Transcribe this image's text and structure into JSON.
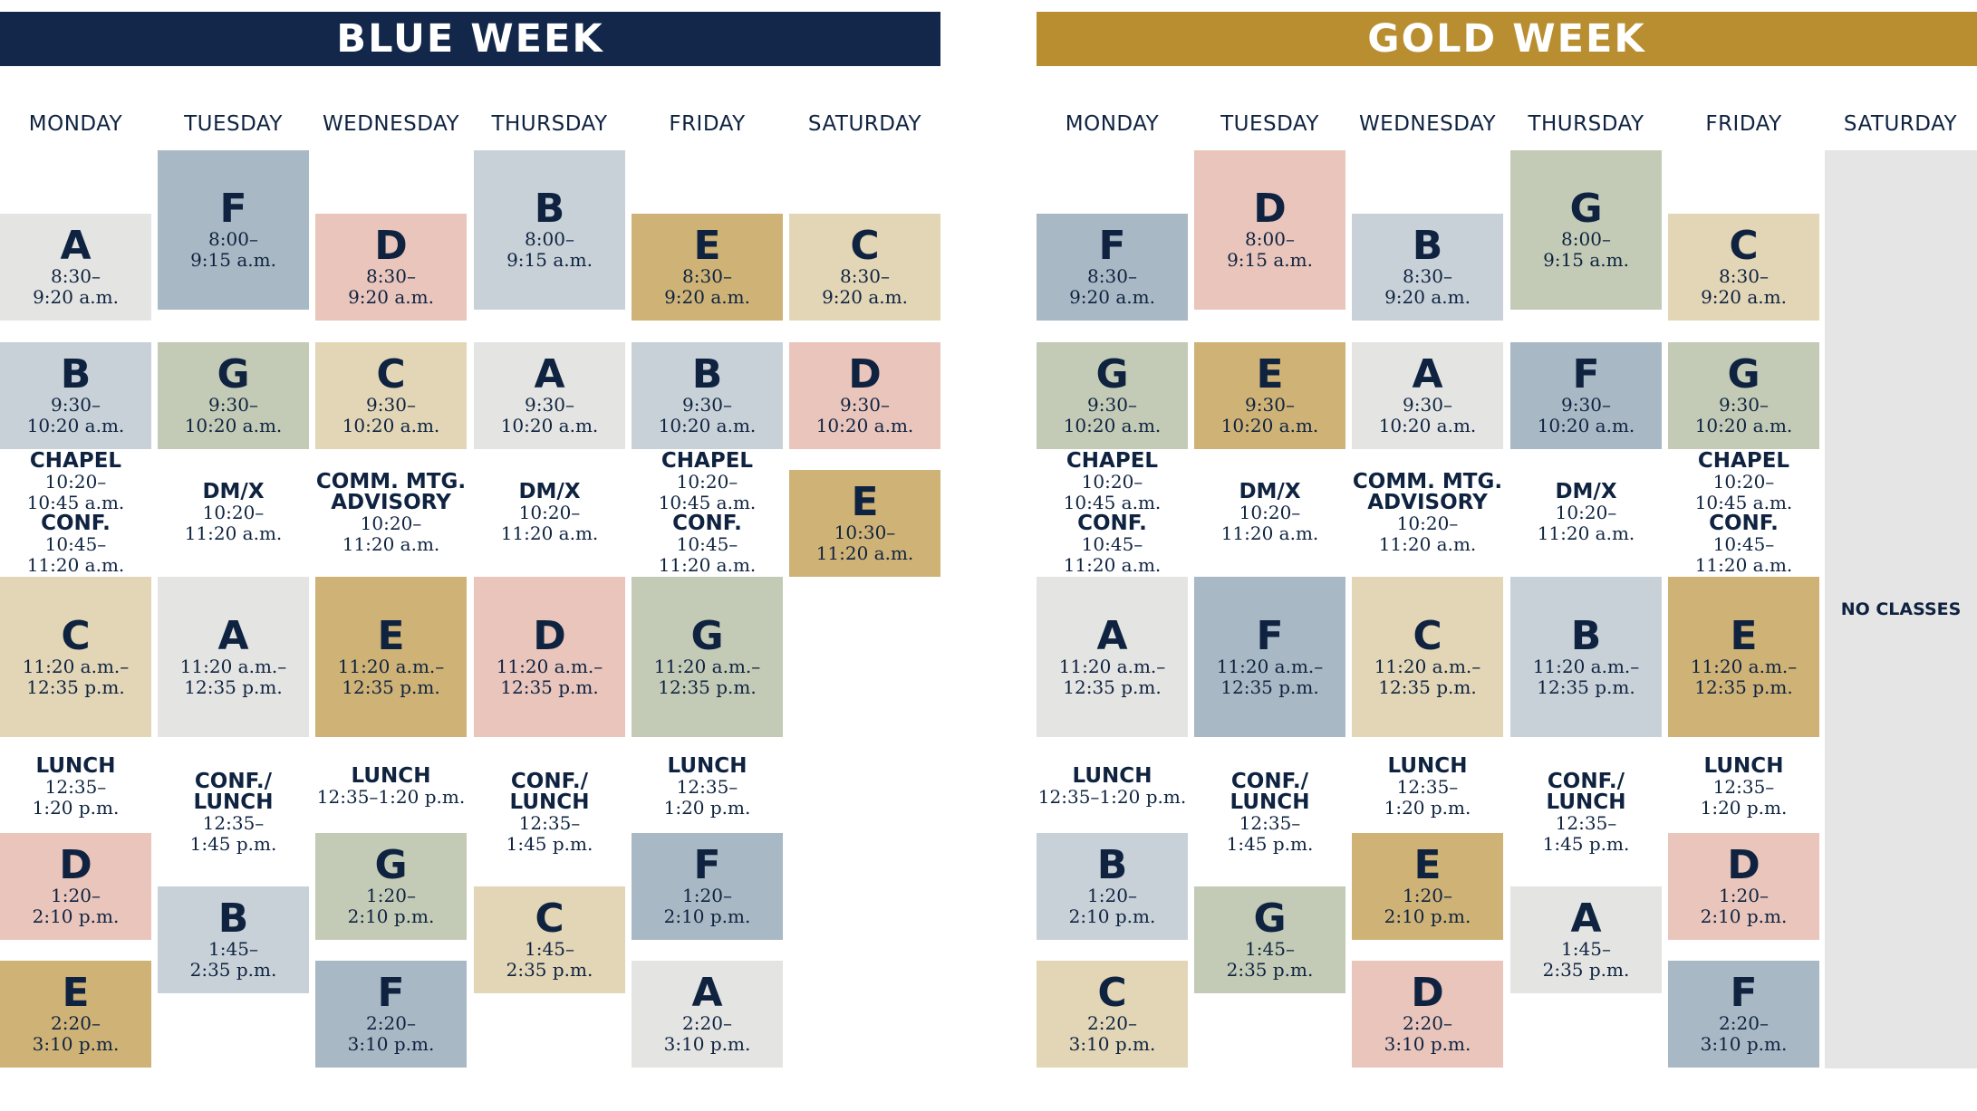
{
  "colors": {
    "blue_banner": "#13274a",
    "gold_banner": "#b88e30",
    "A": "#e4e4e2",
    "B": "#c8d1d8",
    "C": "#e2d6b6",
    "D": "#e9c5bc",
    "E": "#cfb276",
    "F": "#a8b8c4",
    "G": "#c3cbb6",
    "no_classes": "#e5e5e5"
  },
  "blue_week": {
    "title": "BLUE WEEK",
    "days": [
      "MONDAY",
      "TUESDAY",
      "WEDNESDAY",
      "THURSDAY",
      "FRIDAY",
      "SATURDAY"
    ],
    "blocks": [
      {
        "letter": "A",
        "time1": "8:30–",
        "time2": "9:20 a.m."
      },
      {
        "letter": "B",
        "time1": "9:30–",
        "time2": "10:20 a.m."
      },
      {
        "letter": "C",
        "time1": "11:20 a.m.–",
        "time2": "12:35 p.m."
      },
      {
        "letter": "D",
        "time1": "1:20–",
        "time2": "2:10 p.m."
      },
      {
        "letter": "E",
        "time1": "2:20–",
        "time2": "3:10 p.m."
      },
      {
        "letter": "F",
        "time1": "8:00–",
        "time2": "9:15 a.m."
      },
      {
        "letter": "G",
        "time1": "9:30–",
        "time2": "10:20 a.m."
      },
      {
        "letter": "A",
        "time1": "11:20 a.m.–",
        "time2": "12:35 p.m."
      },
      {
        "letter": "B",
        "time1": "1:45–",
        "time2": "2:35 p.m."
      },
      {
        "letter": "D",
        "time1": "8:30–",
        "time2": "9:20 a.m."
      },
      {
        "letter": "C",
        "time1": "9:30–",
        "time2": "10:20 a.m."
      },
      {
        "letter": "E",
        "time1": "11:20 a.m.–",
        "time2": "12:35 p.m."
      },
      {
        "letter": "G",
        "time1": "1:20–",
        "time2": "2:10 p.m."
      },
      {
        "letter": "F",
        "time1": "2:20–",
        "time2": "3:10 p.m."
      },
      {
        "letter": "B",
        "time1": "8:00–",
        "time2": "9:15 a.m."
      },
      {
        "letter": "A",
        "time1": "9:30–",
        "time2": "10:20 a.m."
      },
      {
        "letter": "D",
        "time1": "11:20 a.m.–",
        "time2": "12:35 p.m."
      },
      {
        "letter": "C",
        "time1": "1:45–",
        "time2": "2:35 p.m."
      },
      {
        "letter": "E",
        "time1": "8:30–",
        "time2": "9:20 a.m."
      },
      {
        "letter": "B",
        "time1": "9:30–",
        "time2": "10:20 a.m."
      },
      {
        "letter": "G",
        "time1": "11:20 a.m.–",
        "time2": "12:35 p.m."
      },
      {
        "letter": "F",
        "time1": "1:20–",
        "time2": "2:10 p.m."
      },
      {
        "letter": "A",
        "time1": "2:20–",
        "time2": "3:10 p.m."
      },
      {
        "letter": "C",
        "time1": "8:30–",
        "time2": "9:20 a.m."
      },
      {
        "letter": "D",
        "time1": "9:30–",
        "time2": "10:20 a.m."
      },
      {
        "letter": "E",
        "time1": "10:30–",
        "time2": "11:20 a.m."
      }
    ],
    "info": [
      {
        "lines": [
          {
            "k": "head",
            "t": "CHAPEL"
          },
          {
            "k": "time",
            "t": "10:20–"
          },
          {
            "k": "time",
            "t": "10:45 a.m."
          },
          {
            "k": "head",
            "t": "CONF."
          },
          {
            "k": "time",
            "t": "10:45–"
          },
          {
            "k": "time",
            "t": "11:20 a.m."
          }
        ]
      },
      {
        "lines": [
          {
            "k": "head",
            "t": "LUNCH"
          },
          {
            "k": "time",
            "t": "12:35–"
          },
          {
            "k": "time",
            "t": "1:20 p.m."
          }
        ]
      },
      {
        "lines": [
          {
            "k": "head",
            "t": "DM/X"
          },
          {
            "k": "time",
            "t": "10:20–"
          },
          {
            "k": "time",
            "t": "11:20 a.m."
          }
        ]
      },
      {
        "lines": [
          {
            "k": "head",
            "t": "CONF./"
          },
          {
            "k": "head",
            "t": "LUNCH"
          },
          {
            "k": "time",
            "t": "12:35–"
          },
          {
            "k": "time",
            "t": "1:45 p.m."
          }
        ]
      },
      {
        "lines": [
          {
            "k": "head",
            "t": "COMM. MTG."
          },
          {
            "k": "head",
            "t": "ADVISORY"
          },
          {
            "k": "time",
            "t": "10:20–"
          },
          {
            "k": "time",
            "t": "11:20 a.m."
          }
        ]
      },
      {
        "lines": [
          {
            "k": "head",
            "t": "LUNCH"
          },
          {
            "k": "time",
            "t": "12:35–1:20 p.m."
          }
        ]
      },
      {
        "lines": [
          {
            "k": "head",
            "t": "DM/X"
          },
          {
            "k": "time",
            "t": "10:20–"
          },
          {
            "k": "time",
            "t": "11:20 a.m."
          }
        ]
      },
      {
        "lines": [
          {
            "k": "head",
            "t": "CONF./"
          },
          {
            "k": "head",
            "t": "LUNCH"
          },
          {
            "k": "time",
            "t": "12:35–"
          },
          {
            "k": "time",
            "t": "1:45 p.m."
          }
        ]
      },
      {
        "lines": [
          {
            "k": "head",
            "t": "CHAPEL"
          },
          {
            "k": "time",
            "t": "10:20–"
          },
          {
            "k": "time",
            "t": "10:45 a.m."
          },
          {
            "k": "head",
            "t": "CONF."
          },
          {
            "k": "time",
            "t": "10:45–"
          },
          {
            "k": "time",
            "t": "11:20 a.m."
          }
        ]
      },
      {
        "lines": [
          {
            "k": "head",
            "t": "LUNCH"
          },
          {
            "k": "time",
            "t": "12:35–"
          },
          {
            "k": "time",
            "t": "1:20 p.m."
          }
        ]
      }
    ]
  },
  "gold_week": {
    "title": "GOLD WEEK",
    "days": [
      "MONDAY",
      "TUESDAY",
      "WEDNESDAY",
      "THURSDAY",
      "FRIDAY",
      "SATURDAY"
    ],
    "no_classes": "NO CLASSES",
    "blocks": [
      {
        "letter": "F",
        "time1": "8:30–",
        "time2": "9:20 a.m."
      },
      {
        "letter": "G",
        "time1": "9:30–",
        "time2": "10:20 a.m."
      },
      {
        "letter": "A",
        "time1": "11:20 a.m.–",
        "time2": "12:35 p.m."
      },
      {
        "letter": "B",
        "time1": "1:20–",
        "time2": "2:10 p.m."
      },
      {
        "letter": "C",
        "time1": "2:20–",
        "time2": "3:10 p.m."
      },
      {
        "letter": "D",
        "time1": "8:00–",
        "time2": "9:15 a.m."
      },
      {
        "letter": "E",
        "time1": "9:30–",
        "time2": "10:20 a.m."
      },
      {
        "letter": "F",
        "time1": "11:20 a.m.–",
        "time2": "12:35 p.m."
      },
      {
        "letter": "G",
        "time1": "1:45–",
        "time2": "2:35 p.m."
      },
      {
        "letter": "B",
        "time1": "8:30–",
        "time2": "9:20 a.m."
      },
      {
        "letter": "A",
        "time1": "9:30–",
        "time2": "10:20 a.m."
      },
      {
        "letter": "C",
        "time1": "11:20 a.m.–",
        "time2": "12:35 p.m."
      },
      {
        "letter": "E",
        "time1": "1:20–",
        "time2": "2:10 p.m."
      },
      {
        "letter": "D",
        "time1": "2:20–",
        "time2": "3:10 p.m."
      },
      {
        "letter": "G",
        "time1": "8:00–",
        "time2": "9:15 a.m."
      },
      {
        "letter": "F",
        "time1": "9:30–",
        "time2": "10:20 a.m."
      },
      {
        "letter": "B",
        "time1": "11:20 a.m.–",
        "time2": "12:35 p.m."
      },
      {
        "letter": "A",
        "time1": "1:45–",
        "time2": "2:35 p.m."
      },
      {
        "letter": "C",
        "time1": "8:30–",
        "time2": "9:20 a.m."
      },
      {
        "letter": "G",
        "time1": "9:30–",
        "time2": "10:20 a.m."
      },
      {
        "letter": "E",
        "time1": "11:20 a.m.–",
        "time2": "12:35 p.m."
      },
      {
        "letter": "D",
        "time1": "1:20–",
        "time2": "2:10 p.m."
      },
      {
        "letter": "F",
        "time1": "2:20–",
        "time2": "3:10 p.m."
      }
    ],
    "info": [
      {
        "lines": [
          {
            "k": "head",
            "t": "CHAPEL"
          },
          {
            "k": "time",
            "t": "10:20–"
          },
          {
            "k": "time",
            "t": "10:45 a.m."
          },
          {
            "k": "head",
            "t": "CONF."
          },
          {
            "k": "time",
            "t": "10:45–"
          },
          {
            "k": "time",
            "t": "11:20 a.m."
          }
        ]
      },
      {
        "lines": [
          {
            "k": "head",
            "t": "LUNCH"
          },
          {
            "k": "time",
            "t": "12:35–1:20 p.m."
          }
        ]
      },
      {
        "lines": [
          {
            "k": "head",
            "t": "DM/X"
          },
          {
            "k": "time",
            "t": "10:20–"
          },
          {
            "k": "time",
            "t": "11:20 a.m."
          }
        ]
      },
      {
        "lines": [
          {
            "k": "head",
            "t": "CONF./"
          },
          {
            "k": "head",
            "t": "LUNCH"
          },
          {
            "k": "time",
            "t": "12:35–"
          },
          {
            "k": "time",
            "t": "1:45 p.m."
          }
        ]
      },
      {
        "lines": [
          {
            "k": "head",
            "t": "COMM. MTG."
          },
          {
            "k": "head",
            "t": "ADVISORY"
          },
          {
            "k": "time",
            "t": "10:20–"
          },
          {
            "k": "time",
            "t": "11:20 a.m."
          }
        ]
      },
      {
        "lines": [
          {
            "k": "head",
            "t": "LUNCH"
          },
          {
            "k": "time",
            "t": "12:35–"
          },
          {
            "k": "time",
            "t": "1:20 p.m."
          }
        ]
      },
      {
        "lines": [
          {
            "k": "head",
            "t": "DM/X"
          },
          {
            "k": "time",
            "t": "10:20–"
          },
          {
            "k": "time",
            "t": "11:20 a.m."
          }
        ]
      },
      {
        "lines": [
          {
            "k": "head",
            "t": "CONF./"
          },
          {
            "k": "head",
            "t": "LUNCH"
          },
          {
            "k": "time",
            "t": "12:35–"
          },
          {
            "k": "time",
            "t": "1:45 p.m."
          }
        ]
      },
      {
        "lines": [
          {
            "k": "head",
            "t": "CHAPEL"
          },
          {
            "k": "time",
            "t": "10:20–"
          },
          {
            "k": "time",
            "t": "10:45 a.m."
          },
          {
            "k": "head",
            "t": "CONF."
          },
          {
            "k": "time",
            "t": "10:45–"
          },
          {
            "k": "time",
            "t": "11:20 a.m."
          }
        ]
      },
      {
        "lines": [
          {
            "k": "head",
            "t": "LUNCH"
          },
          {
            "k": "time",
            "t": "12:35–"
          },
          {
            "k": "time",
            "t": "1:20 p.m."
          }
        ]
      }
    ]
  }
}
